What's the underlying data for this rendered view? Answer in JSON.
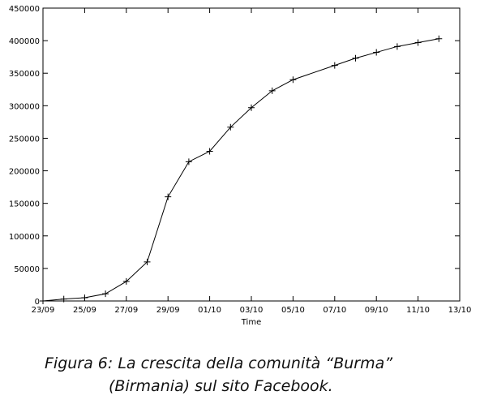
{
  "chart_data": {
    "type": "line",
    "x_label": "Time",
    "x": [
      "23/09",
      "24/09",
      "25/09",
      "26/09",
      "27/09",
      "28/09",
      "29/09",
      "30/09",
      "01/10",
      "02/10",
      "03/10",
      "04/10",
      "05/10",
      "07/10",
      "08/10",
      "09/10",
      "10/10",
      "11/10",
      "12/10"
    ],
    "series": [
      {
        "name": null,
        "color": "#000000",
        "values": [
          0,
          3000,
          5000,
          11000,
          30000,
          60000,
          160000,
          214000,
          230000,
          267000,
          297000,
          323000,
          340000,
          362000,
          373000,
          382000,
          391000,
          397000,
          403000
        ]
      }
    ],
    "xlim": [
      "23/09",
      "13/10"
    ],
    "xticks": [
      "23/09",
      "25/09",
      "27/09",
      "29/09",
      "01/10",
      "03/10",
      "05/10",
      "07/10",
      "09/10",
      "11/10",
      "13/10"
    ],
    "ylim": [
      0,
      450000
    ],
    "yticks": [
      0,
      50000,
      100000,
      150000,
      200000,
      250000,
      300000,
      350000,
      400000,
      450000
    ]
  },
  "caption": [
    "Figura 6: La crescita della comunità “Burma”",
    "(Birmania) sul sito Facebook."
  ]
}
